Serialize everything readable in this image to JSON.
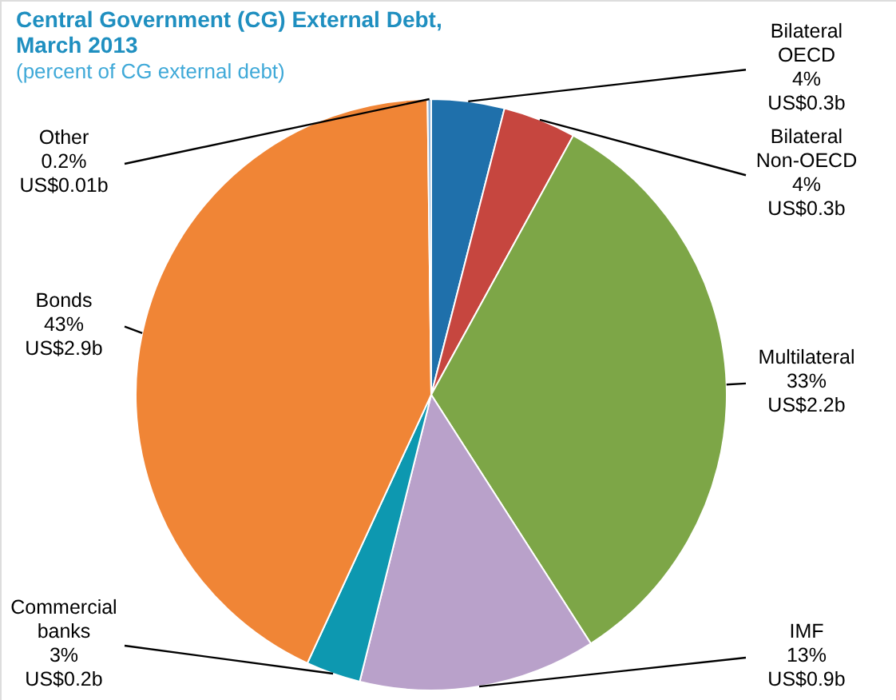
{
  "chart_data": {
    "type": "pie",
    "title": "Central Government (CG) External Debt, March 2013",
    "subtitle": "(percent of CG external debt)",
    "categories": [
      "Bilateral OECD",
      "Bilateral Non-OECD",
      "Multilateral",
      "IMF",
      "Commercial banks",
      "Bonds",
      "Other"
    ],
    "values": [
      4,
      4,
      33,
      13,
      3,
      43,
      0.2
    ],
    "colors": [
      "#1f70ab",
      "#c6463f",
      "#7da647",
      "#b9a1ca",
      "#0d98b0",
      "#f08536",
      "#8fb4d8"
    ],
    "value_labels": [
      "4%\nUS$0.3b",
      "4%\nUS$0.3b",
      "33%\nUS$2.2b",
      "13%\nUS$0.9b",
      "3%\nUS$0.2b",
      "43%\nUS$2.9b",
      "0.2%\nUS$0.01b"
    ],
    "legend": false
  }
}
